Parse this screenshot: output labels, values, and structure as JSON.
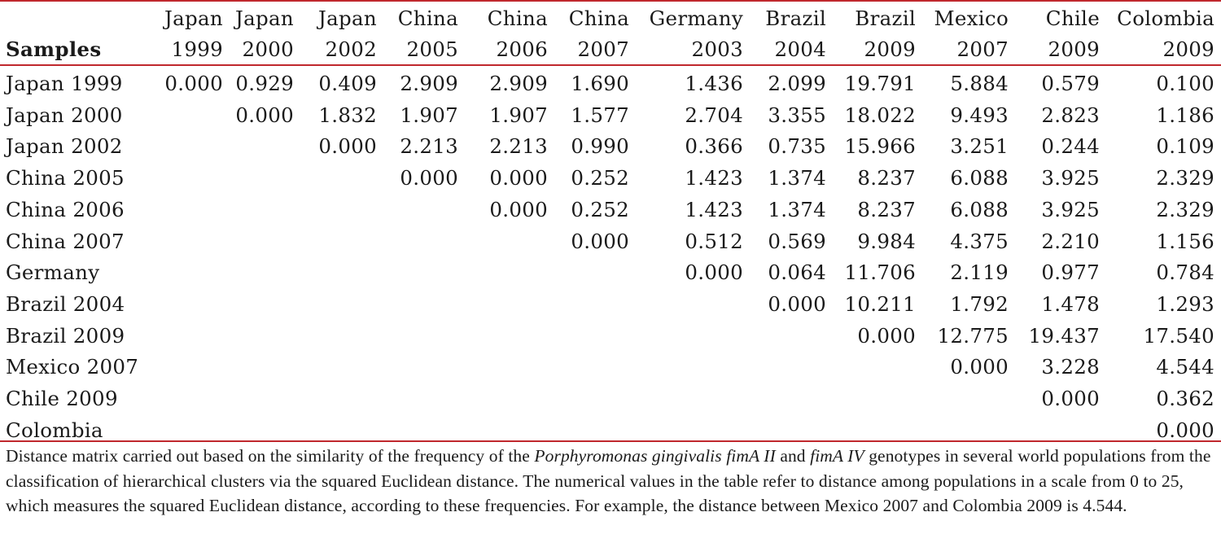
{
  "table": {
    "corner_label": "Samples",
    "columns": [
      {
        "line1": "Japan",
        "line2": "1999"
      },
      {
        "line1": "Japan",
        "line2": "2000"
      },
      {
        "line1": "Japan",
        "line2": "2002"
      },
      {
        "line1": "China",
        "line2": "2005"
      },
      {
        "line1": "China",
        "line2": "2006"
      },
      {
        "line1": "China",
        "line2": "2007"
      },
      {
        "line1": "Germany",
        "line2": "2003"
      },
      {
        "line1": "Brazil",
        "line2": "2004"
      },
      {
        "line1": "Brazil",
        "line2": "2009"
      },
      {
        "line1": "Mexico",
        "line2": "2007"
      },
      {
        "line1": "Chile",
        "line2": "2009"
      },
      {
        "line1": "Colombia",
        "line2": "2009"
      }
    ],
    "rows": [
      {
        "label": "Japan 1999",
        "cells": [
          "0.000",
          "0.929",
          "0.409",
          "2.909",
          "2.909",
          "1.690",
          "1.436",
          "2.099",
          "19.791",
          "5.884",
          "0.579",
          "0.100"
        ]
      },
      {
        "label": "Japan 2000",
        "cells": [
          "",
          "0.000",
          "1.832",
          "1.907",
          "1.907",
          "1.577",
          "2.704",
          "3.355",
          "18.022",
          "9.493",
          "2.823",
          "1.186"
        ]
      },
      {
        "label": "Japan 2002",
        "cells": [
          "",
          "",
          "0.000",
          "2.213",
          "2.213",
          "0.990",
          "0.366",
          "0.735",
          "15.966",
          "3.251",
          "0.244",
          "0.109"
        ]
      },
      {
        "label": "China 2005",
        "cells": [
          "",
          "",
          "",
          "0.000",
          "0.000",
          "0.252",
          "1.423",
          "1.374",
          "8.237",
          "6.088",
          "3.925",
          "2.329"
        ]
      },
      {
        "label": "China 2006",
        "cells": [
          "",
          "",
          "",
          "",
          "0.000",
          "0.252",
          "1.423",
          "1.374",
          "8.237",
          "6.088",
          "3.925",
          "2.329"
        ]
      },
      {
        "label": "China 2007",
        "cells": [
          "",
          "",
          "",
          "",
          "",
          "0.000",
          "0.512",
          "0.569",
          "9.984",
          "4.375",
          "2.210",
          "1.156"
        ]
      },
      {
        "label": "Germany",
        "cells": [
          "",
          "",
          "",
          "",
          "",
          "",
          "0.000",
          "0.064",
          "11.706",
          "2.119",
          "0.977",
          "0.784"
        ]
      },
      {
        "label": "Brazil 2004",
        "cells": [
          "",
          "",
          "",
          "",
          "",
          "",
          "",
          "0.000",
          "10.211",
          "1.792",
          "1.478",
          "1.293"
        ]
      },
      {
        "label": "Brazil 2009",
        "cells": [
          "",
          "",
          "",
          "",
          "",
          "",
          "",
          "",
          "0.000",
          "12.775",
          "19.437",
          "17.540"
        ]
      },
      {
        "label": "Mexico 2007",
        "cells": [
          "",
          "",
          "",
          "",
          "",
          "",
          "",
          "",
          "",
          "0.000",
          "3.228",
          "4.544"
        ]
      },
      {
        "label": "Chile 2009",
        "cells": [
          "",
          "",
          "",
          "",
          "",
          "",
          "",
          "",
          "",
          "",
          "0.000",
          "0.362"
        ]
      },
      {
        "label": "Colombia",
        "cells": [
          "",
          "",
          "",
          "",
          "",
          "",
          "",
          "",
          "",
          "",
          "",
          "0.000"
        ]
      }
    ]
  },
  "caption": {
    "text_before": "Distance matrix carried out based on the similarity of the frequency of the ",
    "species": "Porphyromonas gingivalis",
    "gene1": "fimA II",
    "joiner": " and ",
    "gene2": "fimA IV",
    "text_after": " genotypes in several world populations from the classification of hierarchical clusters via the squared Euclidean distance. The numerical values in the table refer to distance among populations in a scale from 0 to 25, which measures the squared Euclidean distance, according to these frequencies. For example, the distance between Mexico 2007 and Colombia 2009 is 4.544."
  },
  "colors": {
    "rule": "#c0282d",
    "text": "#1a1a1a"
  }
}
